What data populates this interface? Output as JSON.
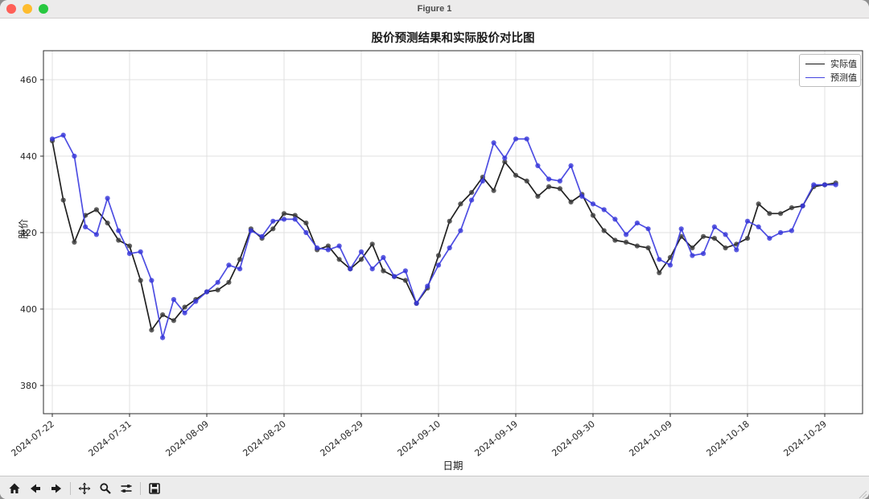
{
  "window": {
    "title": "Figure 1",
    "traffic_lights": {
      "close": "#ff5f57",
      "minimize": "#febc2e",
      "zoom": "#28c840"
    }
  },
  "chart_data": {
    "type": "line",
    "title": "股价预测结果和实际股价对比图",
    "xlabel": "日期",
    "ylabel": "股价",
    "grid": true,
    "grid_color": "#e0e0e0",
    "spine_color": "#2b2b2b",
    "ylim": [
      372.6,
      467.6
    ],
    "y_ticks": [
      380,
      400,
      420,
      440,
      460
    ],
    "x_tick_labels": [
      "2024-07-22",
      "2024-07-31",
      "2024-08-09",
      "2024-08-20",
      "2024-08-29",
      "2024-09-10",
      "2024-09-19",
      "2024-09-30",
      "2024-10-09",
      "2024-10-18",
      "2024-10-29"
    ],
    "x_tick_every_n_points": 7,
    "legend_position": "upper right",
    "legend": [
      {
        "name": "实际值",
        "color": "#141414"
      },
      {
        "name": "预测值",
        "color": "#4444e0"
      }
    ],
    "dates": [
      "2024-07-22",
      "2024-07-23",
      "2024-07-24",
      "2024-07-25",
      "2024-07-26",
      "2024-07-29",
      "2024-07-30",
      "2024-07-31",
      "2024-08-01",
      "2024-08-02",
      "2024-08-05",
      "2024-08-06",
      "2024-08-07",
      "2024-08-08",
      "2024-08-09",
      "2024-08-12",
      "2024-08-13",
      "2024-08-14",
      "2024-08-15",
      "2024-08-16",
      "2024-08-19",
      "2024-08-20",
      "2024-08-21",
      "2024-08-22",
      "2024-08-23",
      "2024-08-26",
      "2024-08-27",
      "2024-08-28",
      "2024-08-29",
      "2024-08-30",
      "2024-09-03",
      "2024-09-04",
      "2024-09-05",
      "2024-09-06",
      "2024-09-09",
      "2024-09-10",
      "2024-09-11",
      "2024-09-12",
      "2024-09-13",
      "2024-09-16",
      "2024-09-17",
      "2024-09-18",
      "2024-09-19",
      "2024-09-20",
      "2024-09-23",
      "2024-09-24",
      "2024-09-25",
      "2024-09-26",
      "2024-09-27",
      "2024-09-30",
      "2024-10-01",
      "2024-10-02",
      "2024-10-03",
      "2024-10-04",
      "2024-10-07",
      "2024-10-08",
      "2024-10-09",
      "2024-10-10",
      "2024-10-11",
      "2024-10-14",
      "2024-10-15",
      "2024-10-16",
      "2024-10-17",
      "2024-10-18",
      "2024-10-21",
      "2024-10-22",
      "2024-10-23",
      "2024-10-24",
      "2024-10-25",
      "2024-10-28",
      "2024-10-29",
      "2024-10-30"
    ],
    "series": [
      {
        "name": "实际值",
        "color": "#141414",
        "marker_color": "#3a3a3a",
        "values": [
          444,
          428.5,
          417.5,
          424.5,
          426,
          422.5,
          418,
          416.5,
          407.5,
          394.5,
          398.5,
          397,
          400.5,
          402.5,
          404.5,
          405,
          407,
          413,
          421,
          418.5,
          421,
          425,
          424.5,
          422.5,
          415.5,
          416.5,
          413,
          410.5,
          413,
          417,
          410,
          408.5,
          407.5,
          401.5,
          405.5,
          414,
          423,
          427.5,
          430.5,
          434.5,
          431,
          438.5,
          435,
          433.5,
          429.5,
          432,
          431.5,
          428,
          430,
          424.5,
          420.5,
          418,
          417.5,
          416.5,
          416,
          409.5,
          413.5,
          419,
          416,
          419,
          418.5,
          416,
          417,
          418.5,
          427.5,
          425,
          425,
          426.5,
          427,
          432,
          432.5,
          433
        ]
      },
      {
        "name": "预测值",
        "color": "#4444e0",
        "marker_color": "#3535d8",
        "values": [
          444.5,
          445.5,
          440,
          421.5,
          419.5,
          429,
          420.5,
          414.5,
          415,
          407.5,
          392.5,
          402.5,
          399,
          402,
          404.5,
          407,
          411.5,
          410.5,
          420.5,
          419,
          423,
          423.5,
          423.5,
          420,
          416,
          415.5,
          416.5,
          410.5,
          415,
          410.5,
          413.5,
          408.5,
          410,
          401.5,
          406,
          411.5,
          416,
          420.5,
          428.5,
          433.5,
          443.5,
          439.5,
          444.5,
          444.5,
          437.5,
          434,
          433.5,
          437.5,
          429.5,
          427.5,
          426,
          423.5,
          419.5,
          422.5,
          421,
          413,
          411.5,
          421,
          414,
          414.5,
          421.5,
          419.5,
          415.5,
          423,
          421.5,
          418.5,
          420,
          420.5,
          427,
          432.5,
          432.5,
          432.5
        ]
      }
    ]
  },
  "toolbar": {
    "buttons": [
      {
        "id": "home",
        "label": "Home"
      },
      {
        "id": "back",
        "label": "Back"
      },
      {
        "id": "forward",
        "label": "Forward"
      },
      {
        "id": "pan",
        "label": "Pan"
      },
      {
        "id": "zoom",
        "label": "Zoom"
      },
      {
        "id": "subplots",
        "label": "Configure subplots"
      },
      {
        "id": "save",
        "label": "Save"
      }
    ]
  }
}
